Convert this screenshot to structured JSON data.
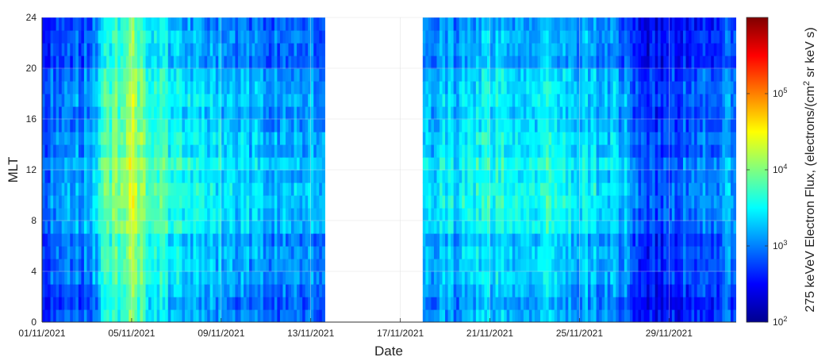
{
  "chart_data": {
    "type": "heatmap",
    "title": "",
    "xlabel": "Date",
    "ylabel": "MLT",
    "x_range": [
      "2021-11-01",
      "2021-12-02"
    ],
    "y_range": [
      0,
      24
    ],
    "x_ticks": [
      "01/11/2021",
      "05/11/2021",
      "09/11/2021",
      "13/11/2021",
      "17/11/2021",
      "21/11/2021",
      "25/11/2021",
      "29/11/2021"
    ],
    "y_ticks": [
      "0",
      "4",
      "8",
      "12",
      "16",
      "20",
      "24"
    ],
    "mlt_bins": 24,
    "data_gap": {
      "start": "2021-11-14",
      "end": "2021-11-18"
    },
    "grid": true,
    "colormap": "jet",
    "colorbar": {
      "label_main": "275 keVeV Electron Flux, (electrons/(cm",
      "label_sup": "2",
      "label_end": " sr keV s)",
      "scale": "log",
      "range": [
        100,
        1000000
      ],
      "ticks": [
        {
          "value": 100,
          "base": "10",
          "exp": "2"
        },
        {
          "value": 1000,
          "base": "10",
          "exp": "3"
        },
        {
          "value": 10000,
          "base": "10",
          "exp": "4"
        },
        {
          "value": 100000,
          "base": "10",
          "exp": "5"
        }
      ]
    },
    "flux_pattern": {
      "description_points_log10": [
        {
          "date": "2021-11-01",
          "log10_flux": 2.8
        },
        {
          "date": "2021-11-03",
          "log10_flux": 3.0
        },
        {
          "date": "2021-11-04",
          "log10_flux": 3.7
        },
        {
          "date": "2021-11-05",
          "log10_flux": 4.1
        },
        {
          "date": "2021-11-06",
          "log10_flux": 3.6
        },
        {
          "date": "2021-11-08",
          "log10_flux": 3.3
        },
        {
          "date": "2021-11-13",
          "log10_flux": 3.0
        },
        {
          "date": "2021-11-18",
          "log10_flux": 3.1
        },
        {
          "date": "2021-11-21",
          "log10_flux": 3.4
        },
        {
          "date": "2021-11-24",
          "log10_flux": 3.4
        },
        {
          "date": "2021-11-27",
          "log10_flux": 3.1
        },
        {
          "date": "2021-11-28",
          "log10_flux": 2.6
        },
        {
          "date": "2021-12-02",
          "log10_flux": 3.0
        }
      ]
    }
  }
}
